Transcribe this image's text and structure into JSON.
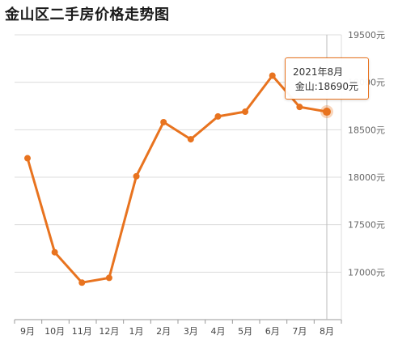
{
  "title": "金山区二手房价格走势图",
  "colors": {
    "line": "#e8731f",
    "grid": "#dcdcdc",
    "axis": "#999999"
  },
  "tooltip": {
    "date": "2021年8月",
    "value_text": "金山:18690元"
  },
  "chart_data": {
    "type": "line",
    "categories": [
      "9月",
      "10月",
      "11月",
      "12月",
      "1月",
      "2月",
      "3月",
      "4月",
      "5月",
      "6月",
      "7月",
      "8月"
    ],
    "series": [
      {
        "name": "金山",
        "values": [
          18200,
          17210,
          16890,
          16940,
          18010,
          18580,
          18400,
          18640,
          18690,
          19070,
          18740,
          18690
        ]
      }
    ],
    "y_ticks": [
      "17000元",
      "17500元",
      "18000元",
      "18500元",
      "19000元",
      "19500元"
    ],
    "ylim": [
      16500,
      19500
    ],
    "xlabel": "",
    "ylabel": "",
    "grid": true,
    "highlight_index": 11
  }
}
